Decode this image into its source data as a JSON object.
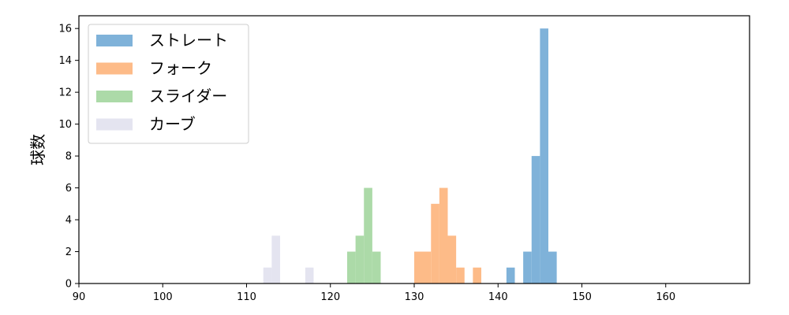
{
  "chart_data": {
    "type": "bar",
    "title": "",
    "xlabel": "",
    "ylabel": "球数",
    "xlim": [
      90,
      170
    ],
    "ylim": [
      0,
      16.8
    ],
    "xticks": [
      90,
      100,
      110,
      120,
      130,
      140,
      150,
      160
    ],
    "yticks": [
      0,
      2,
      4,
      6,
      8,
      10,
      12,
      14,
      16
    ],
    "grid": false,
    "legend_position": "upper-left",
    "series": [
      {
        "name": "ストレート",
        "color": "#7fb2d9",
        "bins": [
          {
            "x0": 141,
            "x1": 142,
            "count": 1
          },
          {
            "x0": 143,
            "x1": 144,
            "count": 2
          },
          {
            "x0": 144,
            "x1": 145,
            "count": 8
          },
          {
            "x0": 145,
            "x1": 146,
            "count": 16
          },
          {
            "x0": 146,
            "x1": 147,
            "count": 2
          }
        ]
      },
      {
        "name": "フォーク",
        "color": "#fdbb88",
        "bins": [
          {
            "x0": 130,
            "x1": 132,
            "count": 2
          },
          {
            "x0": 132,
            "x1": 133,
            "count": 5
          },
          {
            "x0": 133,
            "x1": 134,
            "count": 6
          },
          {
            "x0": 134,
            "x1": 135,
            "count": 3
          },
          {
            "x0": 135,
            "x1": 136,
            "count": 1
          },
          {
            "x0": 137,
            "x1": 138,
            "count": 1
          }
        ]
      },
      {
        "name": "スライダー",
        "color": "#acdaa8",
        "bins": [
          {
            "x0": 122,
            "x1": 123,
            "count": 2
          },
          {
            "x0": 123,
            "x1": 124,
            "count": 3
          },
          {
            "x0": 124,
            "x1": 125,
            "count": 6
          },
          {
            "x0": 125,
            "x1": 126,
            "count": 2
          }
        ]
      },
      {
        "name": "カーブ",
        "color": "#e4e4f0",
        "bins": [
          {
            "x0": 112,
            "x1": 113,
            "count": 1
          },
          {
            "x0": 113,
            "x1": 114,
            "count": 3
          },
          {
            "x0": 117,
            "x1": 118,
            "count": 1
          }
        ]
      }
    ]
  }
}
